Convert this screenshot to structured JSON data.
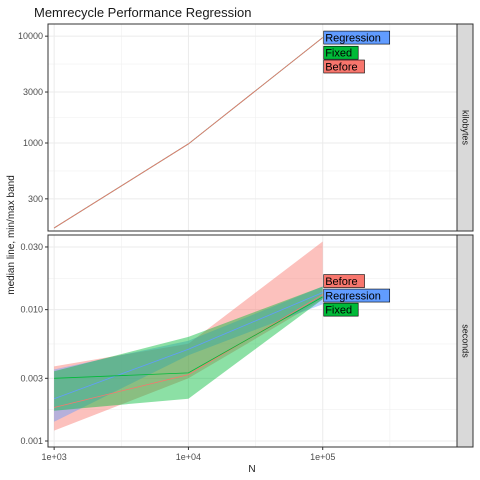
{
  "chart_data": {
    "type": "line",
    "title": "Memrecycle Performance Regression",
    "xlabel": "N",
    "ylabel": "median line, min/max band",
    "x_scale": "log10",
    "x_ticks": [
      1000,
      10000,
      100000
    ],
    "x_tick_labels": [
      "1e+03",
      "1e+04",
      "1e+05"
    ],
    "xlim": [
      900,
      1000000
    ],
    "grid": true,
    "series_colors": {
      "Before": "#F8766D",
      "Fixed": "#00BA38",
      "Regression": "#619CFF"
    },
    "panels": [
      {
        "strip_label": "kilobytes",
        "y_scale": "log10",
        "ylim": [
          150,
          13000
        ],
        "y_ticks": [
          300,
          1000,
          3000,
          10000
        ],
        "y_tick_labels": [
          "300",
          "1000",
          "3000",
          "10000"
        ],
        "series": [
          {
            "name": "Regression",
            "x": [
              1000,
              10000,
              100000
            ],
            "median": [
              160,
              980,
              9700
            ],
            "min": [
              160,
              980,
              9700
            ],
            "max": [
              160,
              980,
              9700
            ]
          },
          {
            "name": "Fixed",
            "x": [
              1000,
              10000,
              100000
            ],
            "median": [
              160,
              980,
              9700
            ],
            "min": [
              160,
              980,
              9700
            ],
            "max": [
              160,
              980,
              9700
            ]
          },
          {
            "name": "Before",
            "x": [
              1000,
              10000,
              100000
            ],
            "median": [
              160,
              980,
              9700
            ],
            "min": [
              160,
              980,
              9700
            ],
            "max": [
              160,
              980,
              9700
            ]
          }
        ],
        "end_labels": [
          {
            "text": "Regression",
            "series": "Regression",
            "y": 9700
          },
          {
            "text": "Fixed",
            "series": "Fixed",
            "y": 7000
          },
          {
            "text": "Before",
            "series": "Before",
            "y": 5200
          }
        ]
      },
      {
        "strip_label": "seconds",
        "y_scale": "log10",
        "ylim": [
          0.0009,
          0.037
        ],
        "y_ticks": [
          0.001,
          0.003,
          0.01,
          0.03
        ],
        "y_tick_labels": [
          "0.001",
          "0.003",
          "0.010",
          "0.030"
        ],
        "series": [
          {
            "name": "Before",
            "x": [
              1000,
              10000,
              100000
            ],
            "median": [
              0.0018,
              0.0032,
              0.013
            ],
            "min": [
              0.0012,
              0.003,
              0.012
            ],
            "max": [
              0.0037,
              0.0055,
              0.033
            ]
          },
          {
            "name": "Regression",
            "x": [
              1000,
              10000,
              100000
            ],
            "median": [
              0.0021,
              0.005,
              0.0135
            ],
            "min": [
              0.0014,
              0.0045,
              0.011
            ],
            "max": [
              0.0035,
              0.0058,
              0.015
            ]
          },
          {
            "name": "Fixed",
            "x": [
              1000,
              10000,
              100000
            ],
            "median": [
              0.003,
              0.0033,
              0.0125
            ],
            "min": [
              0.0017,
              0.0021,
              0.012
            ],
            "max": [
              0.0034,
              0.0062,
              0.015
            ]
          }
        ],
        "end_labels": [
          {
            "text": "Before",
            "series": "Before",
            "y": 0.0165
          },
          {
            "text": "Regression",
            "series": "Regression",
            "y": 0.0128
          },
          {
            "text": "Fixed",
            "series": "Fixed",
            "y": 0.01
          }
        ]
      }
    ]
  }
}
